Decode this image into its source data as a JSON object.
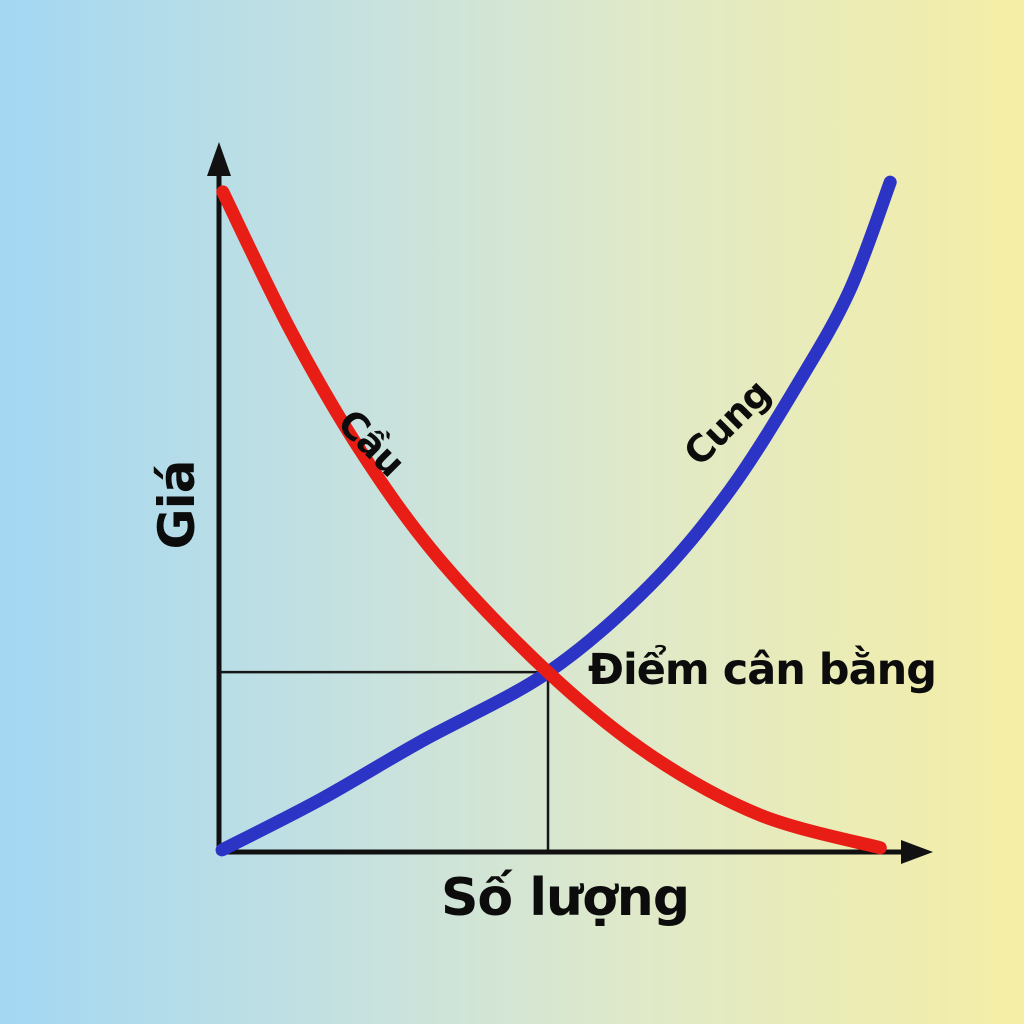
{
  "page": {
    "background_gradient": [
      "#a3d7f3",
      "#f5eea5"
    ]
  },
  "chart_data": {
    "type": "line",
    "title": "",
    "xlabel": "Số lượng",
    "ylabel": "Giá",
    "axes_numeric": false,
    "axis_color": "#111111",
    "grid": false,
    "legend_position": "labels-on-curves",
    "x_range_norm": [
      0,
      1
    ],
    "y_range_norm": [
      0,
      1
    ],
    "series": [
      {
        "name": "Cầu",
        "color": "#e81d15",
        "points": [
          [
            0.004,
            0.947
          ],
          [
            0.099,
            0.749
          ],
          [
            0.197,
            0.577
          ],
          [
            0.31,
            0.419
          ],
          [
            0.462,
            0.258
          ],
          [
            0.606,
            0.139
          ],
          [
            0.761,
            0.053
          ],
          [
            0.93,
            0.006
          ]
        ]
      },
      {
        "name": "Cung",
        "color": "#2b34c4",
        "points": [
          [
            0.003,
            0.003
          ],
          [
            0.141,
            0.075
          ],
          [
            0.282,
            0.158
          ],
          [
            0.462,
            0.258
          ],
          [
            0.606,
            0.383
          ],
          [
            0.718,
            0.519
          ],
          [
            0.817,
            0.677
          ],
          [
            0.887,
            0.806
          ],
          [
            0.944,
            0.961
          ]
        ]
      }
    ],
    "annotations": [
      {
        "label": "Điểm cân bằng",
        "at": [
          0.462,
          0.258
        ]
      }
    ]
  }
}
